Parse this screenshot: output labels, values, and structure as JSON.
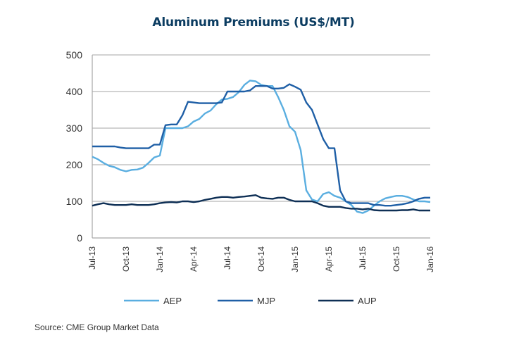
{
  "chart_data": {
    "type": "line",
    "title": "Aluminum Premiums (US$/MT)",
    "xlabel": "",
    "ylabel": "",
    "ylim": [
      0,
      500
    ],
    "yticks": [
      0,
      100,
      200,
      300,
      400,
      500
    ],
    "grid": true,
    "legend_position": "bottom",
    "x_tick_labels": [
      "Jul-13",
      "Oct-13",
      "Jan-14",
      "Apr-14",
      "Jul-14",
      "Oct-14",
      "Jan-15",
      "Apr-15",
      "Jul-15",
      "Oct-15",
      "Jan-16"
    ],
    "x_month_index_range": [
      0,
      30
    ],
    "x": [
      0,
      0.5,
      1,
      1.5,
      2,
      2.5,
      3,
      3.5,
      4,
      4.5,
      5,
      5.5,
      6,
      6.5,
      7,
      7.5,
      8,
      8.5,
      9,
      9.5,
      10,
      10.5,
      11,
      11.5,
      12,
      12.5,
      13,
      13.5,
      14,
      14.5,
      15,
      15.5,
      16,
      16.5,
      17,
      17.5,
      18,
      18.5,
      19,
      19.5,
      20,
      20.5,
      21,
      21.5,
      22,
      22.5,
      23,
      23.5,
      24,
      24.5,
      25,
      25.5,
      26,
      26.5,
      27,
      27.5,
      28,
      28.5,
      29,
      29.5,
      30
    ],
    "series": [
      {
        "name": "AEP",
        "color": "#5aaee0",
        "values": [
          222,
          215,
          205,
          197,
          193,
          186,
          182,
          186,
          187,
          192,
          205,
          220,
          225,
          300,
          300,
          300,
          300,
          305,
          318,
          325,
          340,
          348,
          365,
          378,
          380,
          385,
          398,
          418,
          430,
          428,
          418,
          415,
          415,
          385,
          350,
          305,
          290,
          240,
          130,
          105,
          100,
          120,
          125,
          115,
          110,
          100,
          90,
          72,
          68,
          75,
          88,
          100,
          108,
          112,
          115,
          115,
          112,
          105,
          100,
          100,
          98
        ]
      },
      {
        "name": "MJP",
        "color": "#1f5fa6",
        "values": [
          250,
          250,
          250,
          250,
          250,
          247,
          245,
          245,
          245,
          245,
          245,
          255,
          255,
          308,
          310,
          310,
          335,
          372,
          370,
          368,
          368,
          368,
          368,
          370,
          400,
          400,
          400,
          400,
          403,
          415,
          415,
          415,
          408,
          408,
          410,
          420,
          413,
          405,
          370,
          350,
          310,
          270,
          245,
          245,
          130,
          100,
          95,
          95,
          95,
          95,
          90,
          90,
          88,
          88,
          90,
          92,
          95,
          100,
          107,
          110,
          110
        ]
      },
      {
        "name": "AUP",
        "color": "#0e2f55",
        "values": [
          88,
          92,
          95,
          92,
          90,
          90,
          90,
          92,
          90,
          90,
          90,
          92,
          95,
          97,
          98,
          97,
          100,
          100,
          98,
          100,
          104,
          107,
          110,
          112,
          112,
          110,
          112,
          113,
          115,
          117,
          110,
          108,
          107,
          110,
          110,
          104,
          100,
          100,
          100,
          100,
          95,
          88,
          85,
          85,
          85,
          82,
          80,
          80,
          78,
          80,
          76,
          75,
          75,
          75,
          75,
          76,
          76,
          78,
          75,
          75,
          75
        ]
      }
    ],
    "source": "Source: CME Group Market Data"
  }
}
